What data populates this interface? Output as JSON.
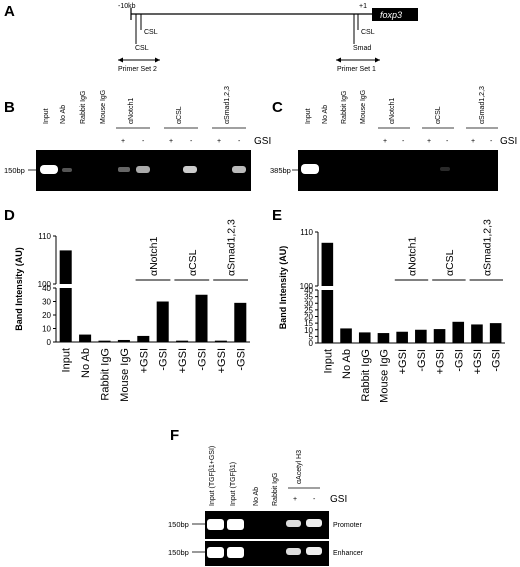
{
  "panels": {
    "a": "A",
    "b": "B",
    "c": "C",
    "d": "D",
    "e": "E",
    "f": "F"
  },
  "schematic": {
    "start_label": "-10kb",
    "tss_label": "+1",
    "gene": "foxp3",
    "sites_left": [
      "CSL",
      "CSL"
    ],
    "sites_right": [
      "CSL",
      "Smad"
    ],
    "primer_set_2": "Primer Set 2",
    "primer_set_1": "Primer Set 1"
  },
  "gel_b": {
    "marker": "150bp",
    "lanes": [
      "Input",
      "No Ab",
      "Rabbit IgG",
      "Mouse IgG"
    ],
    "groups": [
      "αNotch1",
      "αCSL",
      "αSmad1,2,3"
    ],
    "signs": [
      "+",
      "-",
      "+",
      "-",
      "+",
      "-"
    ],
    "gsi": "GSI"
  },
  "gel_c": {
    "marker": "385bp",
    "lanes": [
      "Input",
      "No Ab",
      "Rabbit IgG",
      "Mouse IgG"
    ],
    "groups": [
      "αNotch1",
      "αCSL",
      "αSmad1,2,3"
    ],
    "signs": [
      "+",
      "-",
      "+",
      "-",
      "+",
      "-"
    ],
    "gsi": "GSI"
  },
  "gel_f": {
    "lanes": [
      "Input (TGFβ1+GSI)",
      "Input (TGFβ1)",
      "No Ab",
      "Rabbit IgG"
    ],
    "group": "αAcetyl H3",
    "signs": [
      "+",
      "-"
    ],
    "gsi": "GSI",
    "markers": [
      "150bp",
      "150bp"
    ],
    "rows": [
      "Promoter",
      "Enhancer"
    ]
  },
  "chart_data": [
    {
      "type": "bar",
      "panel": "D",
      "ylabel": "Band Intensity (AU)",
      "categories": [
        "Input",
        "No Ab",
        "Rabbit IgG",
        "Mouse IgG",
        "+GSI",
        "-GSI",
        "+GSI",
        "-GSI",
        "+GSI",
        "-GSI"
      ],
      "values": [
        107,
        5.5,
        1,
        1.5,
        4.5,
        30,
        1,
        35,
        1,
        29
      ],
      "groups": [
        "αNotch1",
        "αCSL",
        "αSmad1,2,3"
      ],
      "axis_break": {
        "lower": [
          0,
          40
        ],
        "upper": [
          100,
          110
        ]
      },
      "yticks_lower": [
        "0",
        "10",
        "20",
        "30",
        "40"
      ],
      "yticks_upper": [
        "100",
        "110"
      ]
    },
    {
      "type": "bar",
      "panel": "E",
      "ylabel": "Band Intensity (AU)",
      "categories": [
        "Input",
        "No Ab",
        "Rabbit IgG",
        "Mouse IgG",
        "+GSI",
        "-GSI",
        "+GSI",
        "-GSI",
        "+GSI",
        "-GSI"
      ],
      "values": [
        108,
        11,
        8,
        7.5,
        8.5,
        10,
        10.5,
        16,
        14,
        15
      ],
      "groups": [
        "αNotch1",
        "αCSL",
        "αSmad1,2,3"
      ],
      "axis_break": {
        "lower": [
          0,
          40
        ],
        "upper": [
          100,
          110
        ]
      },
      "yticks_lower": [
        "0",
        "5",
        "10",
        "15",
        "20",
        "25",
        "30",
        "35",
        "40"
      ],
      "yticks_upper": [
        "100",
        "110"
      ]
    }
  ]
}
